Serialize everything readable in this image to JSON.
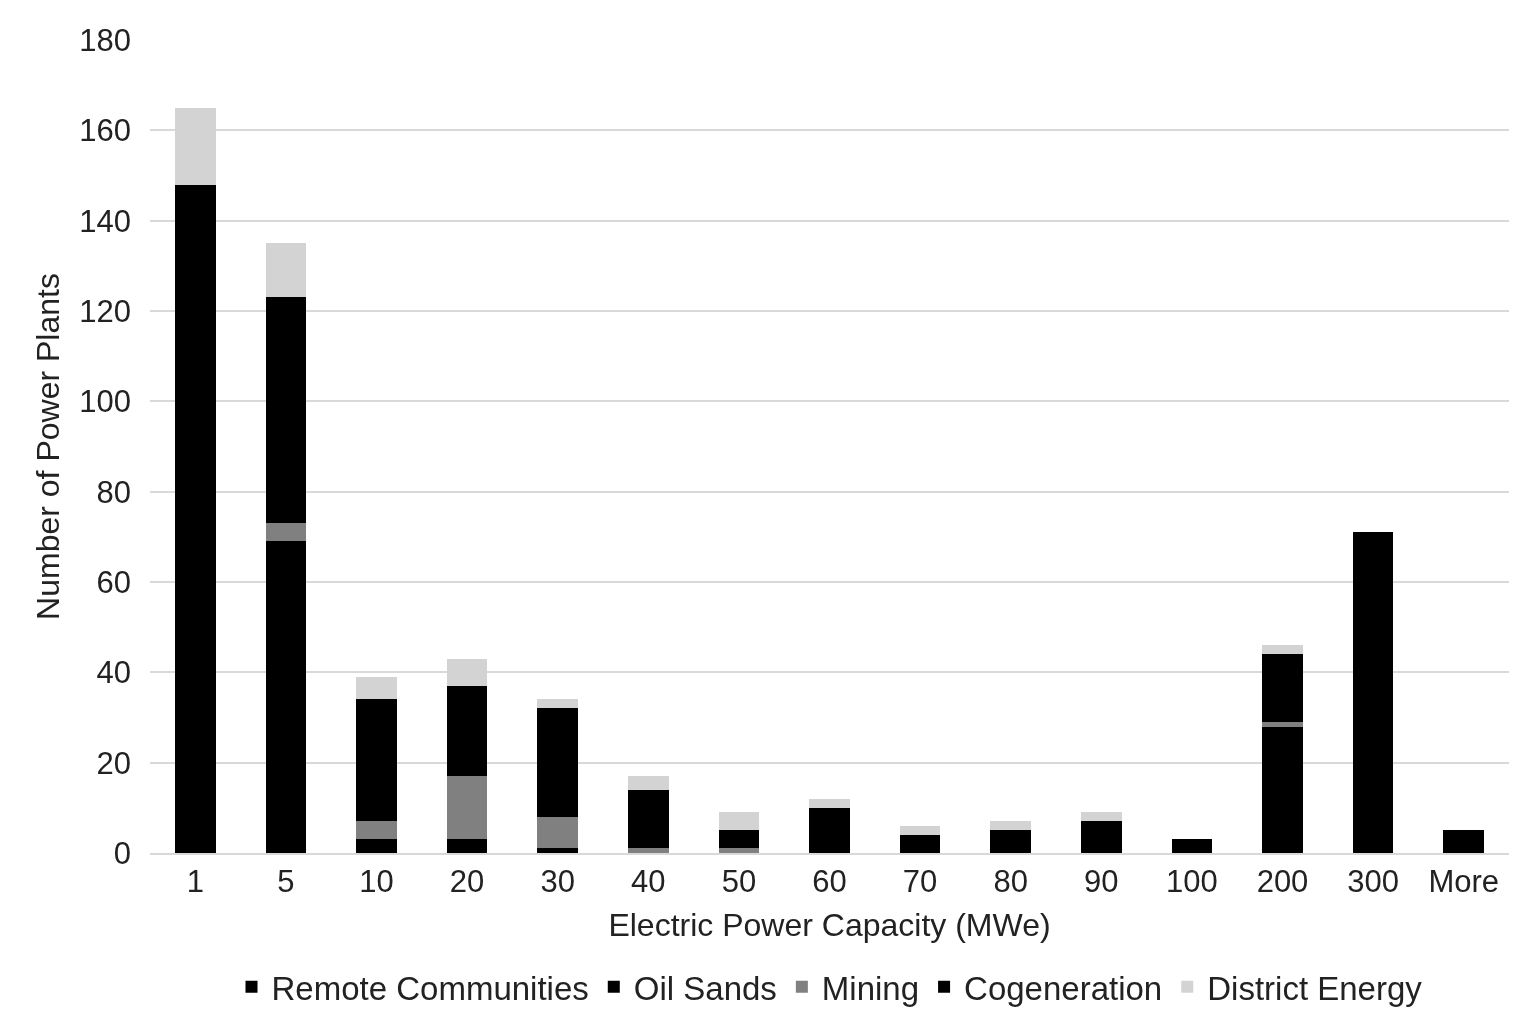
{
  "chart_data": {
    "type": "bar",
    "stacked": true,
    "xlabel": "Electric Power Capacity (MWe)",
    "ylabel": "Number of Power Plants",
    "categories": [
      "1",
      "5",
      "10",
      "20",
      "30",
      "40",
      "50",
      "60",
      "70",
      "80",
      "90",
      "100",
      "200",
      "300",
      "More"
    ],
    "ylim": [
      0,
      180
    ],
    "yticks": [
      0,
      20,
      40,
      60,
      80,
      100,
      120,
      140,
      160,
      180
    ],
    "grid": "y",
    "legend": "bottom",
    "series": [
      {
        "name": "Remote Communities",
        "color": "#000000",
        "values": [
          104,
          69,
          3,
          3,
          1,
          0,
          0,
          0,
          1,
          0,
          0,
          0,
          0,
          0,
          0
        ]
      },
      {
        "name": "Oil Sands",
        "color": "#000000",
        "values": [
          0,
          0,
          0,
          0,
          0,
          0,
          0,
          0,
          0,
          0,
          0,
          0,
          28,
          65,
          0
        ]
      },
      {
        "name": "Mining",
        "color": "#808080",
        "values": [
          0,
          4,
          4,
          14,
          7,
          1,
          1,
          0,
          0,
          0,
          0,
          0,
          1,
          0,
          0
        ]
      },
      {
        "name": "Cogeneration",
        "color": "#000000",
        "values": [
          44,
          50,
          27,
          20,
          24,
          13,
          4,
          10,
          3,
          5,
          7,
          3,
          15,
          6,
          5
        ]
      },
      {
        "name": "District Energy",
        "color": "#d3d3d3",
        "values": [
          17,
          12,
          5,
          6,
          2,
          3,
          4,
          2,
          2,
          2,
          2,
          0,
          2,
          0,
          0
        ]
      }
    ]
  }
}
